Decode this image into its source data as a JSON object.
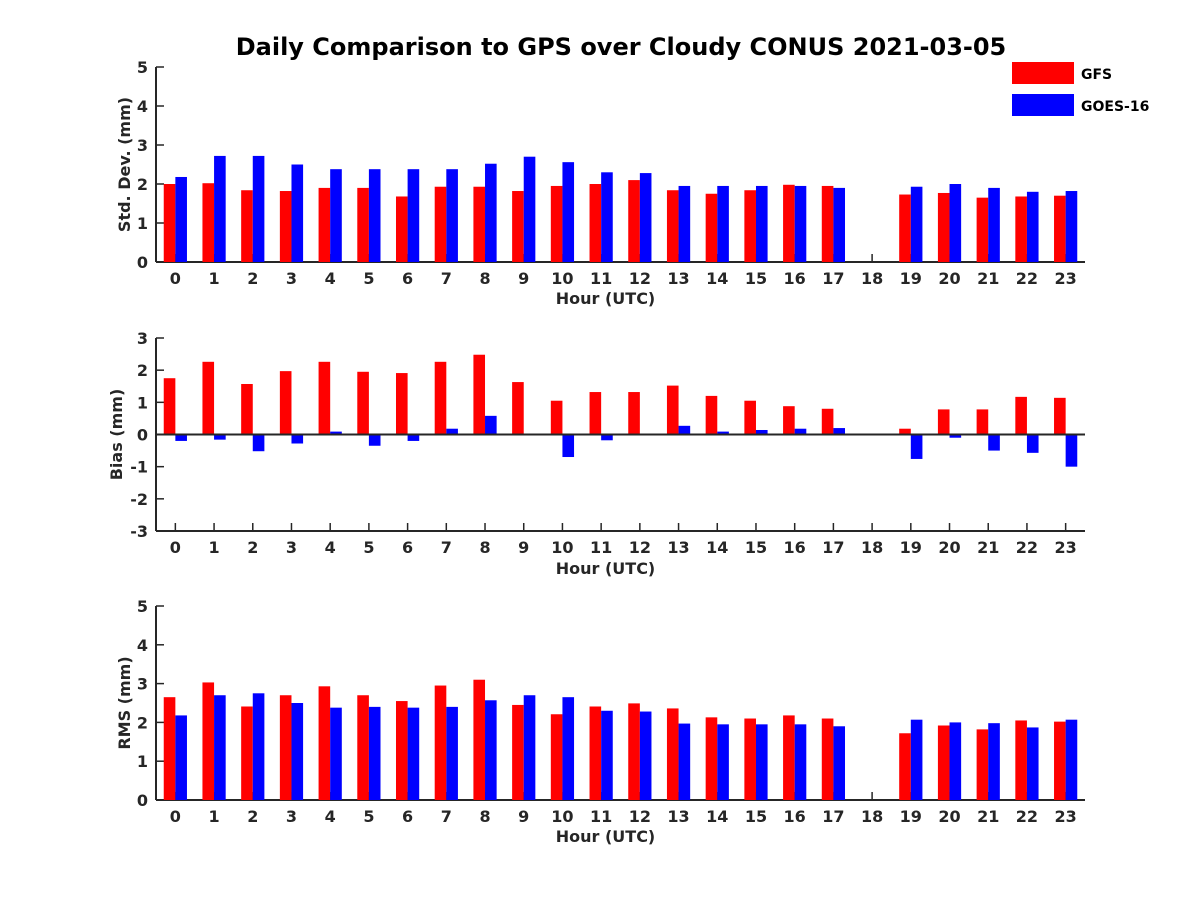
{
  "figure": {
    "title": "Daily Comparison to GPS over Cloudy CONUS 2021-03-05"
  },
  "legend": {
    "placement": "top-right",
    "entries": [
      {
        "label": "GFS",
        "color": "#ff0000"
      },
      {
        "label": "GOES-16",
        "color": "#0000ff"
      }
    ]
  },
  "chart_data": [
    {
      "type": "bar",
      "title": "Daily Comparison to GPS over Cloudy CONUS 2021-03-05",
      "xlabel": "Hour (UTC)",
      "ylabel": "Std. Dev. (mm)",
      "ylim": [
        0,
        5
      ],
      "yticks": [
        0,
        1,
        2,
        3,
        4,
        5
      ],
      "grid": false,
      "categories": [
        "0",
        "1",
        "2",
        "3",
        "4",
        "5",
        "6",
        "7",
        "8",
        "9",
        "10",
        "11",
        "12",
        "13",
        "14",
        "15",
        "16",
        "17",
        "18",
        "19",
        "20",
        "21",
        "22",
        "23"
      ],
      "series": [
        {
          "name": "GFS",
          "color": "#ff0000",
          "values": [
            2.0,
            2.02,
            1.84,
            1.82,
            1.9,
            1.9,
            1.68,
            1.93,
            1.93,
            1.82,
            1.95,
            2.0,
            2.1,
            1.84,
            1.75,
            1.84,
            1.98,
            1.95,
            null,
            1.73,
            1.77,
            1.65,
            1.68,
            1.7
          ]
        },
        {
          "name": "GOES-16",
          "color": "#0000ff",
          "values": [
            2.18,
            2.72,
            2.72,
            2.5,
            2.38,
            2.38,
            2.38,
            2.38,
            2.52,
            2.7,
            2.56,
            2.3,
            2.28,
            1.95,
            1.95,
            1.95,
            1.95,
            1.9,
            null,
            1.93,
            2.0,
            1.9,
            1.8,
            1.82
          ]
        }
      ]
    },
    {
      "type": "bar",
      "xlabel": "Hour (UTC)",
      "ylabel": "Bias (mm)",
      "ylim": [
        -3,
        3
      ],
      "yticks": [
        -3,
        -2,
        -1,
        0,
        1,
        2,
        3
      ],
      "grid": false,
      "zero_line": true,
      "categories": [
        "0",
        "1",
        "2",
        "3",
        "4",
        "5",
        "6",
        "7",
        "8",
        "9",
        "10",
        "11",
        "12",
        "13",
        "14",
        "15",
        "16",
        "17",
        "18",
        "19",
        "20",
        "21",
        "22",
        "23"
      ],
      "series": [
        {
          "name": "GFS",
          "color": "#ff0000",
          "values": [
            1.75,
            2.26,
            1.57,
            1.97,
            2.26,
            1.95,
            1.91,
            2.26,
            2.48,
            1.63,
            1.05,
            1.32,
            1.32,
            1.52,
            1.2,
            1.05,
            0.88,
            0.8,
            null,
            0.18,
            0.78,
            0.78,
            1.17,
            1.14
          ]
        },
        {
          "name": "GOES-16",
          "color": "#0000ff",
          "values": [
            -0.2,
            -0.16,
            -0.52,
            -0.28,
            0.09,
            -0.35,
            -0.2,
            0.18,
            0.58,
            -0.03,
            -0.7,
            -0.18,
            0.02,
            0.27,
            0.09,
            0.14,
            0.18,
            0.2,
            null,
            -0.76,
            -0.1,
            -0.5,
            -0.57,
            -1.0
          ]
        }
      ]
    },
    {
      "type": "bar",
      "xlabel": "Hour (UTC)",
      "ylabel": "RMS (mm)",
      "ylim": [
        0,
        5
      ],
      "yticks": [
        0,
        1,
        2,
        3,
        4,
        5
      ],
      "grid": false,
      "categories": [
        "0",
        "1",
        "2",
        "3",
        "4",
        "5",
        "6",
        "7",
        "8",
        "9",
        "10",
        "11",
        "12",
        "13",
        "14",
        "15",
        "16",
        "17",
        "18",
        "19",
        "20",
        "21",
        "22",
        "23"
      ],
      "series": [
        {
          "name": "GFS",
          "color": "#ff0000",
          "values": [
            2.65,
            3.03,
            2.41,
            2.7,
            2.93,
            2.7,
            2.55,
            2.95,
            3.1,
            2.45,
            2.21,
            2.41,
            2.49,
            2.36,
            2.13,
            2.1,
            2.18,
            2.1,
            null,
            1.72,
            1.92,
            1.82,
            2.05,
            2.02
          ]
        },
        {
          "name": "GOES-16",
          "color": "#0000ff",
          "values": [
            2.18,
            2.7,
            2.75,
            2.5,
            2.38,
            2.4,
            2.38,
            2.4,
            2.57,
            2.7,
            2.65,
            2.3,
            2.28,
            1.97,
            1.95,
            1.95,
            1.95,
            1.9,
            null,
            2.07,
            2.0,
            1.98,
            1.87,
            2.07
          ]
        }
      ]
    }
  ]
}
